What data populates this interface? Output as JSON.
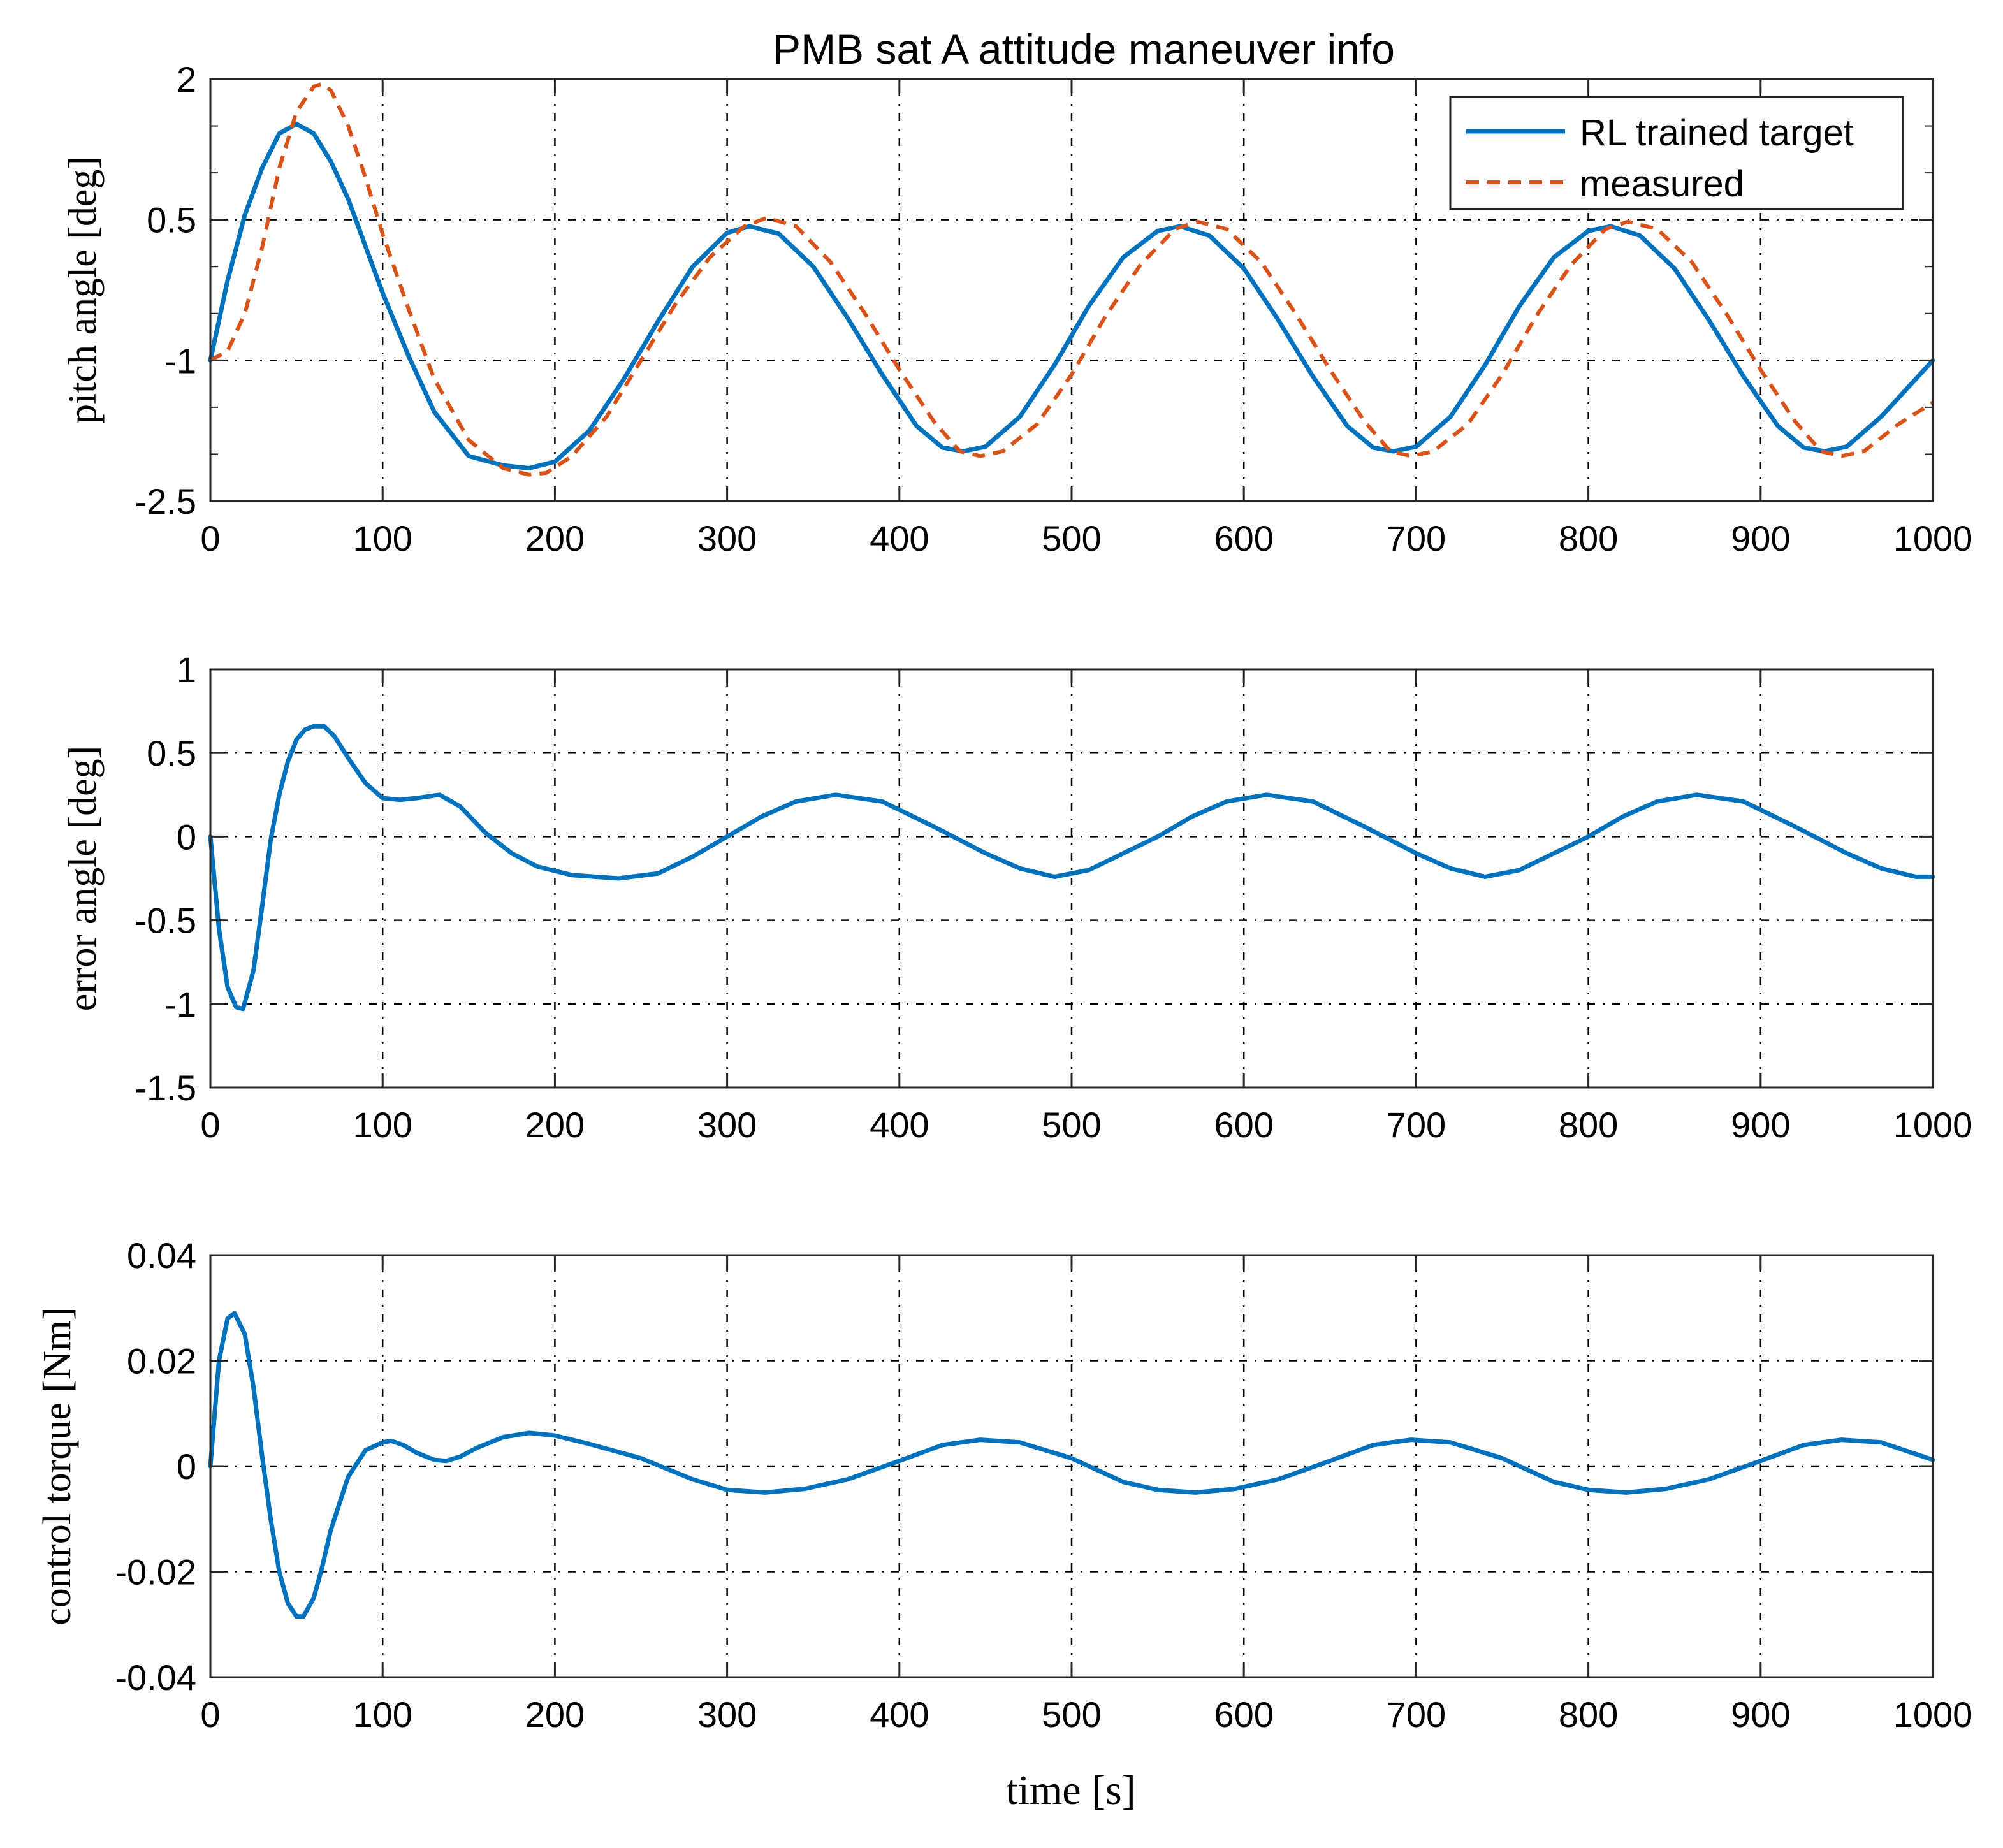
{
  "title": "PMB sat A attitude maneuver info",
  "xlabel": "time [s]",
  "colors": {
    "target": "#0072BD",
    "measured": "#D95319",
    "grid": "#000000",
    "axes": "#262626"
  },
  "chart_data": [
    {
      "type": "line",
      "id": "pitch",
      "ylabel": "pitch angle [deg]",
      "xlim": [
        0,
        1000
      ],
      "ylim": [
        -2.5,
        2
      ],
      "xticks": [
        0,
        100,
        200,
        300,
        400,
        500,
        600,
        700,
        800,
        900,
        1000
      ],
      "yticks": [
        -2.5,
        -1,
        0.5,
        2
      ],
      "ytick_labels": [
        "-2.5",
        "-1",
        "0.5",
        "2"
      ],
      "legend": {
        "location": "top-right",
        "entries": [
          "RL trained target",
          "measured"
        ]
      },
      "series": [
        {
          "name": "RL trained target",
          "style": "solid",
          "color": "#0072BD",
          "x": [
            0,
            10,
            20,
            30,
            40,
            50,
            60,
            70,
            80,
            90,
            100,
            115,
            130,
            150,
            170,
            185,
            200,
            220,
            240,
            260,
            280,
            300,
            313,
            330,
            350,
            370,
            390,
            410,
            425,
            437,
            450,
            470,
            490,
            510,
            530,
            550,
            563,
            580,
            600,
            620,
            640,
            660,
            675,
            687,
            700,
            720,
            740,
            760,
            780,
            800,
            813,
            830,
            850,
            870,
            890,
            910,
            925,
            937,
            950,
            970,
            990,
            1000
          ],
          "y": [
            -1.0,
            -0.15,
            0.55,
            1.05,
            1.42,
            1.52,
            1.42,
            1.12,
            0.72,
            0.22,
            -0.28,
            -0.95,
            -1.55,
            -2.02,
            -2.12,
            -2.15,
            -2.08,
            -1.75,
            -1.2,
            -0.58,
            0.0,
            0.36,
            0.43,
            0.35,
            0.0,
            -0.55,
            -1.15,
            -1.7,
            -1.93,
            -1.97,
            -1.92,
            -1.6,
            -1.05,
            -0.42,
            0.1,
            0.38,
            0.43,
            0.33,
            -0.02,
            -0.57,
            -1.17,
            -1.7,
            -1.93,
            -1.97,
            -1.92,
            -1.6,
            -1.05,
            -0.42,
            0.1,
            0.38,
            0.43,
            0.33,
            -0.02,
            -0.57,
            -1.17,
            -1.7,
            -1.93,
            -1.97,
            -1.92,
            -1.6,
            -1.2,
            -1.0
          ]
        },
        {
          "name": "measured",
          "style": "dashed",
          "color": "#D95319",
          "x": [
            0,
            10,
            20,
            30,
            40,
            50,
            60,
            65,
            70,
            80,
            90,
            100,
            115,
            130,
            150,
            170,
            185,
            195,
            210,
            230,
            250,
            270,
            290,
            310,
            323,
            340,
            360,
            380,
            400,
            420,
            435,
            447,
            460,
            480,
            500,
            520,
            540,
            560,
            573,
            590,
            610,
            630,
            650,
            670,
            685,
            697,
            710,
            730,
            750,
            770,
            790,
            810,
            823,
            840,
            860,
            880,
            900,
            920,
            935,
            947,
            960,
            980,
            1000
          ],
          "y": [
            -1.0,
            -0.9,
            -0.5,
            0.2,
            1.05,
            1.65,
            1.92,
            1.95,
            1.88,
            1.5,
            0.95,
            0.35,
            -0.45,
            -1.2,
            -1.85,
            -2.15,
            -2.22,
            -2.2,
            -2.02,
            -1.6,
            -1.0,
            -0.4,
            0.1,
            0.43,
            0.52,
            0.43,
            0.05,
            -0.5,
            -1.1,
            -1.65,
            -1.97,
            -2.02,
            -1.97,
            -1.68,
            -1.15,
            -0.52,
            0.02,
            0.4,
            0.48,
            0.4,
            0.05,
            -0.5,
            -1.1,
            -1.65,
            -1.97,
            -2.02,
            -1.97,
            -1.68,
            -1.15,
            -0.52,
            0.02,
            0.4,
            0.48,
            0.4,
            0.05,
            -0.5,
            -1.1,
            -1.65,
            -1.97,
            -2.02,
            -1.97,
            -1.68,
            -1.45
          ]
        }
      ]
    },
    {
      "type": "line",
      "id": "error",
      "ylabel": "error angle [deg]",
      "xlim": [
        0,
        1000
      ],
      "ylim": [
        -1.5,
        1
      ],
      "xticks": [
        0,
        100,
        200,
        300,
        400,
        500,
        600,
        700,
        800,
        900,
        1000
      ],
      "yticks": [
        -1.5,
        -1,
        -0.5,
        0,
        0.5,
        1
      ],
      "ytick_labels": [
        "-1.5",
        "-1",
        "-0.5",
        "0",
        "0.5",
        "1"
      ],
      "series": [
        {
          "name": "error angle",
          "style": "solid",
          "color": "#0072BD",
          "x": [
            0,
            5,
            10,
            15,
            19,
            25,
            30,
            35,
            40,
            45,
            50,
            55,
            60,
            66,
            72,
            80,
            90,
            100,
            110,
            120,
            133,
            145,
            160,
            175,
            190,
            210,
            237,
            260,
            280,
            300,
            320,
            340,
            363,
            390,
            420,
            450,
            470,
            490,
            510,
            530,
            550,
            570,
            590,
            613,
            640,
            670,
            700,
            720,
            740,
            760,
            780,
            800,
            820,
            840,
            863,
            890,
            920,
            950,
            970,
            990,
            1000
          ],
          "y": [
            0.0,
            -0.55,
            -0.9,
            -1.02,
            -1.03,
            -0.8,
            -0.42,
            -0.02,
            0.25,
            0.45,
            0.58,
            0.64,
            0.66,
            0.66,
            0.6,
            0.47,
            0.32,
            0.23,
            0.22,
            0.23,
            0.25,
            0.18,
            0.02,
            -0.1,
            -0.18,
            -0.23,
            -0.25,
            -0.22,
            -0.12,
            0.0,
            0.12,
            0.21,
            0.25,
            0.21,
            0.06,
            -0.1,
            -0.19,
            -0.24,
            -0.2,
            -0.1,
            0.0,
            0.12,
            0.21,
            0.25,
            0.21,
            0.06,
            -0.1,
            -0.19,
            -0.24,
            -0.2,
            -0.1,
            0.0,
            0.12,
            0.21,
            0.25,
            0.21,
            0.06,
            -0.1,
            -0.19,
            -0.24,
            -0.24
          ]
        }
      ]
    },
    {
      "type": "line",
      "id": "torque",
      "ylabel": "control torque [Nm]",
      "xlim": [
        0,
        1000
      ],
      "ylim": [
        -0.04,
        0.04
      ],
      "xticks": [
        0,
        100,
        200,
        300,
        400,
        500,
        600,
        700,
        800,
        900,
        1000
      ],
      "yticks": [
        -0.04,
        -0.02,
        0,
        0.02,
        0.04
      ],
      "ytick_labels": [
        "-0.04",
        "-0.02",
        "0",
        "0.02",
        "0.04"
      ],
      "series": [
        {
          "name": "control torque",
          "style": "solid",
          "color": "#0072BD",
          "x": [
            0,
            5,
            10,
            14,
            20,
            25,
            30,
            35,
            40,
            45,
            50,
            54,
            60,
            65,
            70,
            80,
            90,
            100,
            105,
            112,
            120,
            130,
            137,
            145,
            155,
            170,
            185,
            200,
            220,
            250,
            280,
            300,
            322,
            345,
            370,
            400,
            425,
            447,
            470,
            500,
            530,
            550,
            572,
            595,
            620,
            650,
            675,
            697,
            720,
            750,
            780,
            800,
            822,
            845,
            870,
            900,
            925,
            947,
            970,
            1000
          ],
          "y": [
            0.0,
            0.02,
            0.028,
            0.029,
            0.025,
            0.015,
            0.002,
            -0.01,
            -0.02,
            -0.026,
            -0.0285,
            -0.0285,
            -0.025,
            -0.019,
            -0.012,
            -0.002,
            0.003,
            0.0045,
            0.0048,
            0.004,
            0.0025,
            0.0012,
            0.001,
            0.0018,
            0.0035,
            0.0055,
            0.0063,
            0.0058,
            0.0042,
            0.0015,
            -0.0025,
            -0.0045,
            -0.005,
            -0.0043,
            -0.0025,
            0.001,
            0.004,
            0.005,
            0.0045,
            0.0015,
            -0.003,
            -0.0045,
            -0.005,
            -0.0043,
            -0.0025,
            0.001,
            0.004,
            0.005,
            0.0045,
            0.0015,
            -0.003,
            -0.0045,
            -0.005,
            -0.0043,
            -0.0025,
            0.001,
            0.004,
            0.005,
            0.0045,
            0.0012
          ]
        }
      ]
    }
  ]
}
